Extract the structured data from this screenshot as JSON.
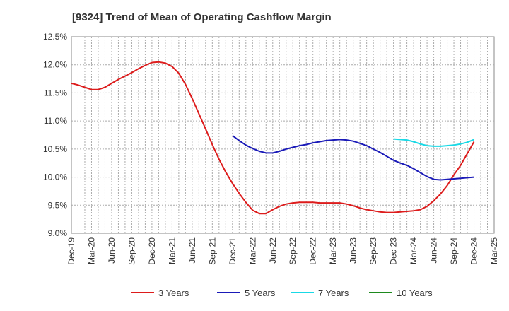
{
  "chart_data": {
    "type": "line",
    "title": "[9324]  Trend of Mean of Operating Cashflow Margin",
    "xlabel": "",
    "ylabel": "",
    "ylim": [
      9.0,
      12.5
    ],
    "yticks": [
      "9.0%",
      "9.5%",
      "10.0%",
      "10.5%",
      "11.0%",
      "11.5%",
      "12.0%",
      "12.5%"
    ],
    "ytick_values": [
      9.0,
      9.5,
      10.0,
      10.5,
      11.0,
      11.5,
      12.0,
      12.5
    ],
    "xticks": [
      "Dec-19",
      "Mar-20",
      "Jun-20",
      "Sep-20",
      "Dec-20",
      "Mar-21",
      "Jun-21",
      "Sep-21",
      "Dec-21",
      "Mar-22",
      "Jun-22",
      "Sep-22",
      "Dec-22",
      "Mar-23",
      "Jun-23",
      "Sep-23",
      "Dec-23",
      "Mar-24",
      "Jun-24",
      "Sep-24",
      "Dec-24",
      "Mar-25"
    ],
    "grid": true,
    "legend_position": "bottom",
    "series": [
      {
        "name": "3 Years",
        "color": "#dd1c1c",
        "x": [
          "Dec-19",
          "Jan-20",
          "Feb-20",
          "Mar-20",
          "Apr-20",
          "May-20",
          "Jun-20",
          "Jul-20",
          "Aug-20",
          "Sep-20",
          "Oct-20",
          "Nov-20",
          "Dec-20",
          "Jan-21",
          "Feb-21",
          "Mar-21",
          "Apr-21",
          "May-21",
          "Jun-21",
          "Jul-21",
          "Aug-21",
          "Sep-21",
          "Oct-21",
          "Nov-21",
          "Dec-21",
          "Jan-22",
          "Feb-22",
          "Mar-22",
          "Apr-22",
          "May-22",
          "Jun-22",
          "Jul-22",
          "Aug-22",
          "Sep-22",
          "Oct-22",
          "Nov-22",
          "Dec-22",
          "Jan-23",
          "Feb-23",
          "Mar-23",
          "Apr-23",
          "May-23",
          "Jun-23",
          "Jul-23",
          "Aug-23",
          "Sep-23",
          "Oct-23",
          "Nov-23",
          "Dec-23",
          "Jan-24",
          "Feb-24",
          "Mar-24",
          "Apr-24",
          "May-24",
          "Jun-24",
          "Jul-24",
          "Aug-24",
          "Sep-24",
          "Oct-24",
          "Nov-24",
          "Dec-24"
        ],
        "values": [
          11.67,
          11.64,
          11.6,
          11.56,
          11.56,
          11.6,
          11.67,
          11.74,
          11.8,
          11.86,
          11.93,
          11.99,
          12.04,
          12.05,
          12.03,
          11.97,
          11.85,
          11.65,
          11.4,
          11.13,
          10.86,
          10.58,
          10.32,
          10.09,
          9.89,
          9.71,
          9.55,
          9.41,
          9.35,
          9.35,
          9.42,
          9.48,
          9.52,
          9.54,
          9.55,
          9.55,
          9.55,
          9.54,
          9.54,
          9.54,
          9.54,
          9.52,
          9.49,
          9.45,
          9.42,
          9.4,
          9.38,
          9.37,
          9.37,
          9.38,
          9.39,
          9.4,
          9.42,
          9.48,
          9.58,
          9.7,
          9.85,
          10.04,
          10.21,
          10.42,
          10.63
        ]
      },
      {
        "name": "5 Years",
        "color": "#1a1ab8",
        "x": [
          "Dec-21",
          "Jan-22",
          "Feb-22",
          "Mar-22",
          "Apr-22",
          "May-22",
          "Jun-22",
          "Jul-22",
          "Aug-22",
          "Sep-22",
          "Oct-22",
          "Nov-22",
          "Dec-22",
          "Jan-23",
          "Feb-23",
          "Mar-23",
          "Apr-23",
          "May-23",
          "Jun-23",
          "Jul-23",
          "Aug-23",
          "Sep-23",
          "Oct-23",
          "Nov-23",
          "Dec-23",
          "Jan-24",
          "Feb-24",
          "Mar-24",
          "Apr-24",
          "May-24",
          "Jun-24",
          "Jul-24",
          "Aug-24",
          "Sep-24",
          "Oct-24",
          "Nov-24",
          "Dec-24"
        ],
        "values": [
          10.74,
          10.65,
          10.57,
          10.51,
          10.46,
          10.43,
          10.43,
          10.46,
          10.5,
          10.53,
          10.56,
          10.58,
          10.61,
          10.63,
          10.65,
          10.66,
          10.67,
          10.66,
          10.64,
          10.6,
          10.56,
          10.5,
          10.44,
          10.37,
          10.3,
          10.25,
          10.21,
          10.15,
          10.08,
          10.01,
          9.96,
          9.95,
          9.96,
          9.97,
          9.98,
          9.99,
          10.0
        ]
      },
      {
        "name": "7 Years",
        "color": "#19d9e6",
        "x": [
          "Dec-23",
          "Jan-24",
          "Feb-24",
          "Mar-24",
          "Apr-24",
          "May-24",
          "Jun-24",
          "Jul-24",
          "Aug-24",
          "Sep-24",
          "Oct-24",
          "Nov-24",
          "Dec-24"
        ],
        "values": [
          10.68,
          10.67,
          10.66,
          10.63,
          10.59,
          10.56,
          10.55,
          10.55,
          10.56,
          10.57,
          10.59,
          10.62,
          10.67
        ]
      },
      {
        "name": "10 Years",
        "color": "#1e8a1e",
        "x": [],
        "values": []
      }
    ]
  }
}
